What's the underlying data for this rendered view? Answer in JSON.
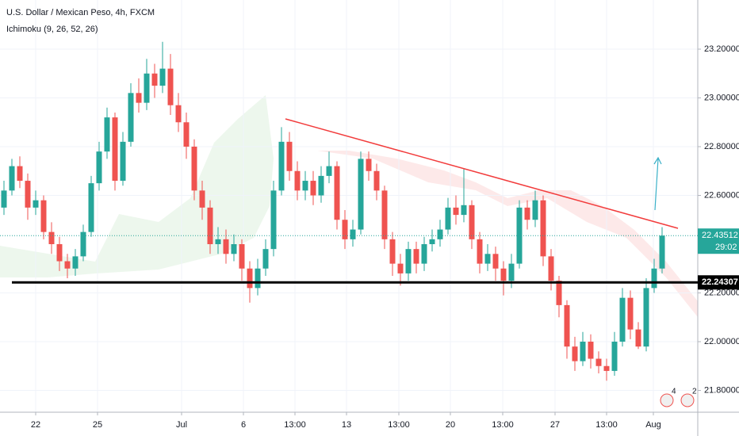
{
  "chart_data": {
    "type": "candlestick",
    "title": "U.S. Dollar / Mexican Peso, 4h, FXCM",
    "indicator": "Ichimoku (9, 26, 52, 26)",
    "up_color": "#26a69a",
    "down_color": "#ef5350",
    "x": [
      0,
      1,
      2,
      3,
      4,
      5,
      6,
      7,
      8,
      9,
      10,
      11,
      12,
      13,
      14,
      15,
      16,
      17,
      18,
      19,
      20,
      21,
      22,
      23,
      24,
      25,
      26,
      27,
      28,
      29,
      30,
      31,
      32,
      33,
      34,
      35,
      36,
      37,
      38,
      39,
      40,
      41,
      42,
      43,
      44,
      45,
      46,
      47,
      48,
      49,
      50,
      51,
      52,
      53,
      54,
      55,
      56,
      57,
      58,
      59,
      60,
      61,
      62,
      63,
      64,
      65,
      66,
      67,
      68,
      69,
      70,
      71,
      72,
      73,
      74,
      75,
      76,
      77,
      78,
      79,
      80,
      81,
      82,
      83
    ],
    "open": [
      22.55,
      22.62,
      22.72,
      22.66,
      22.55,
      22.58,
      22.45,
      22.4,
      22.33,
      22.3,
      22.35,
      22.45,
      22.65,
      22.78,
      22.92,
      22.66,
      22.82,
      23.02,
      22.98,
      23.1,
      23.05,
      23.12,
      22.97,
      22.9,
      22.8,
      22.62,
      22.55,
      22.4,
      22.42,
      22.36,
      22.4,
      22.3,
      22.22,
      22.3,
      22.38,
      22.62,
      22.82,
      22.7,
      22.62,
      22.66,
      22.6,
      22.68,
      22.72,
      22.5,
      22.42,
      22.46,
      22.75,
      22.7,
      22.62,
      22.42,
      22.32,
      22.28,
      22.38,
      22.32,
      22.4,
      22.42,
      22.46,
      22.55,
      22.52,
      22.56,
      22.42,
      22.32,
      22.36,
      22.3,
      22.25,
      22.32,
      22.55,
      22.5,
      22.58,
      22.35,
      22.25,
      22.15,
      21.98,
      21.92,
      22.0,
      21.93,
      21.9,
      21.88,
      22.0,
      22.18,
      22.05,
      21.98,
      22.22,
      22.3
    ],
    "high": [
      22.66,
      22.75,
      22.76,
      22.69,
      22.62,
      22.6,
      22.49,
      22.43,
      22.36,
      22.38,
      22.48,
      22.68,
      22.82,
      22.96,
      22.94,
      22.86,
      23.06,
      23.08,
      23.16,
      23.14,
      23.23,
      23.18,
      23.02,
      22.94,
      22.83,
      22.66,
      22.58,
      22.47,
      22.46,
      22.44,
      22.42,
      22.33,
      22.34,
      22.42,
      22.66,
      22.88,
      22.86,
      22.74,
      22.7,
      22.7,
      22.72,
      22.78,
      22.74,
      22.54,
      22.5,
      22.78,
      22.78,
      22.73,
      22.64,
      22.45,
      22.36,
      22.41,
      22.41,
      22.43,
      22.46,
      22.5,
      22.59,
      22.6,
      22.71,
      22.58,
      22.45,
      22.4,
      22.39,
      22.33,
      22.36,
      22.58,
      22.58,
      22.62,
      22.6,
      22.38,
      22.27,
      22.17,
      22.02,
      22.04,
      22.03,
      21.96,
      21.93,
      22.04,
      22.22,
      22.21,
      22.08,
      22.26,
      22.34,
      22.47
    ],
    "low": [
      22.52,
      22.6,
      22.63,
      22.5,
      22.52,
      22.42,
      22.36,
      22.29,
      22.26,
      22.27,
      22.33,
      22.43,
      22.62,
      22.75,
      22.62,
      22.64,
      22.8,
      22.94,
      22.95,
      23.0,
      23.02,
      22.93,
      22.86,
      22.75,
      22.58,
      22.5,
      22.36,
      22.36,
      22.32,
      22.33,
      22.25,
      22.16,
      22.19,
      22.27,
      22.35,
      22.6,
      22.66,
      22.58,
      22.58,
      22.56,
      22.57,
      22.65,
      22.46,
      22.38,
      22.39,
      22.44,
      22.66,
      22.58,
      22.38,
      22.27,
      22.23,
      22.25,
      22.28,
      22.29,
      22.37,
      22.39,
      22.44,
      22.48,
      22.49,
      22.38,
      22.28,
      22.29,
      22.25,
      22.19,
      22.22,
      22.3,
      22.46,
      22.47,
      22.31,
      22.21,
      22.1,
      21.93,
      21.88,
      21.9,
      21.89,
      21.87,
      21.84,
      21.86,
      21.98,
      22.01,
      21.97,
      21.96,
      22.2,
      22.28
    ],
    "close": [
      22.62,
      22.72,
      22.66,
      22.55,
      22.58,
      22.45,
      22.4,
      22.33,
      22.3,
      22.35,
      22.45,
      22.65,
      22.78,
      22.92,
      22.66,
      22.82,
      23.02,
      22.98,
      23.1,
      23.05,
      23.12,
      22.97,
      22.9,
      22.8,
      22.62,
      22.55,
      22.4,
      22.42,
      22.36,
      22.4,
      22.3,
      22.22,
      22.3,
      22.38,
      22.62,
      22.82,
      22.7,
      22.62,
      22.66,
      22.6,
      22.68,
      22.72,
      22.5,
      22.42,
      22.46,
      22.75,
      22.7,
      22.62,
      22.42,
      22.32,
      22.28,
      22.38,
      22.32,
      22.4,
      22.42,
      22.46,
      22.55,
      22.52,
      22.56,
      22.42,
      22.32,
      22.36,
      22.3,
      22.25,
      22.32,
      22.55,
      22.5,
      22.58,
      22.35,
      22.25,
      22.15,
      21.98,
      21.92,
      22.0,
      21.93,
      21.9,
      21.88,
      22.0,
      22.18,
      22.05,
      21.98,
      22.22,
      22.3,
      22.435
    ],
    "xlim": [
      -0.5,
      87.5
    ],
    "xticks": [
      {
        "value": 4,
        "label": "22"
      },
      {
        "value": 11.8,
        "label": "25"
      },
      {
        "value": 22.4,
        "label": "Jul"
      },
      {
        "value": 30.2,
        "label": "6"
      },
      {
        "value": 36.7,
        "label": "13:00"
      },
      {
        "value": 43.2,
        "label": "13"
      },
      {
        "value": 49.8,
        "label": "13:00"
      },
      {
        "value": 56.3,
        "label": "20"
      },
      {
        "value": 62.9,
        "label": "13:00"
      },
      {
        "value": 69.5,
        "label": "27"
      },
      {
        "value": 76,
        "label": "13:00"
      },
      {
        "value": 81.9,
        "label": "Aug"
      }
    ],
    "ylim": [
      21.7106,
      23.4016
    ],
    "yticks": [
      {
        "value": 21.8,
        "label": "21.80000"
      },
      {
        "value": 22.0,
        "label": "22.00000"
      },
      {
        "value": 22.2,
        "label": "22.20000"
      },
      {
        "value": 22.6,
        "label": "22.60000"
      },
      {
        "value": 22.8,
        "label": "22.80000"
      },
      {
        "value": 23.0,
        "label": "23.00000"
      },
      {
        "value": 23.2,
        "label": "23.20000"
      }
    ],
    "support_level": 22.24307,
    "current_price": 22.43512,
    "countdown": "29:02",
    "events": [
      "4",
      "2"
    ]
  }
}
